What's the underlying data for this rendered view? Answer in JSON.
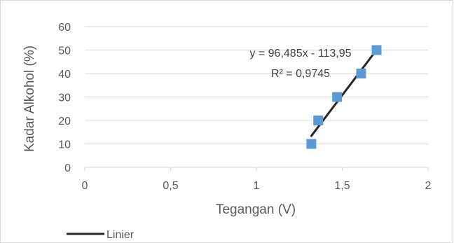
{
  "chart_data": {
    "type": "scatter",
    "title": "",
    "xlabel": "Tegangan (V)",
    "ylabel": "Kadar Alkohol (%)",
    "xlim": [
      0,
      2
    ],
    "ylim": [
      0,
      60
    ],
    "x_ticks": [
      0,
      0.5,
      1,
      1.5,
      2
    ],
    "x_tick_labels": [
      "0",
      "0,5",
      "1",
      "1,5",
      "2"
    ],
    "y_ticks": [
      0,
      10,
      20,
      30,
      40,
      50,
      60
    ],
    "y_tick_labels": [
      "0",
      "10",
      "20",
      "30",
      "40",
      "50",
      "60"
    ],
    "grid": "horizontal",
    "series": [
      {
        "x": [
          1.32,
          1.36,
          1.47,
          1.61,
          1.7
        ],
        "y": [
          10,
          20,
          30,
          40,
          50
        ],
        "color": "#5b9bd5",
        "marker": "square"
      }
    ],
    "trendline": {
      "name": "Linier",
      "slope": 96.485,
      "intercept": -113.95,
      "x_range": [
        1.32,
        1.7
      ],
      "color": "#262626",
      "equation_text": "y = 96,485x - 113,95",
      "r2_text": "R² = 0,9745"
    },
    "legend_position": "bottom-left",
    "legend": [
      {
        "label": "Linier",
        "color": "#262626"
      }
    ]
  }
}
